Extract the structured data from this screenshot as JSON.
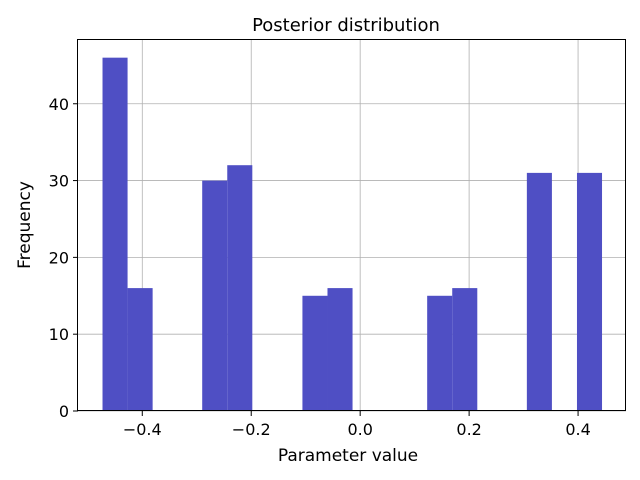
{
  "chart_data": {
    "type": "bar",
    "title": "Posterior distribution",
    "xlabel": "Parameter value",
    "ylabel": "Frequency",
    "xlim": [
      -0.518,
      0.488
    ],
    "ylim": [
      0,
      48.3
    ],
    "xticks": [
      -0.4,
      -0.2,
      0.0,
      0.2,
      0.4
    ],
    "xtick_labels": [
      "−0.4",
      "−0.2",
      "0.0",
      "0.2",
      "0.4"
    ],
    "yticks": [
      0,
      10,
      20,
      30,
      40
    ],
    "ytick_labels": [
      "0",
      "10",
      "20",
      "30",
      "40"
    ],
    "grid": true,
    "bar_color": "#4f4fc4",
    "bins": [
      {
        "x0": -0.473,
        "x1": -0.427,
        "value": 46
      },
      {
        "x0": -0.427,
        "x1": -0.381,
        "value": 16
      },
      {
        "x0": -0.381,
        "x1": -0.335,
        "value": 0
      },
      {
        "x0": -0.335,
        "x1": -0.29,
        "value": 0
      },
      {
        "x0": -0.29,
        "x1": -0.244,
        "value": 30
      },
      {
        "x0": -0.244,
        "x1": -0.198,
        "value": 32
      },
      {
        "x0": -0.198,
        "x1": -0.152,
        "value": 0
      },
      {
        "x0": -0.152,
        "x1": -0.106,
        "value": 0
      },
      {
        "x0": -0.106,
        "x1": -0.06,
        "value": 15
      },
      {
        "x0": -0.06,
        "x1": -0.014,
        "value": 16
      },
      {
        "x0": -0.014,
        "x1": 0.031,
        "value": 0
      },
      {
        "x0": 0.031,
        "x1": 0.077,
        "value": 0
      },
      {
        "x0": 0.077,
        "x1": 0.123,
        "value": 0
      },
      {
        "x0": 0.123,
        "x1": 0.169,
        "value": 15
      },
      {
        "x0": 0.169,
        "x1": 0.215,
        "value": 16
      },
      {
        "x0": 0.215,
        "x1": 0.261,
        "value": 0
      },
      {
        "x0": 0.261,
        "x1": 0.306,
        "value": 0
      },
      {
        "x0": 0.306,
        "x1": 0.352,
        "value": 31
      },
      {
        "x0": 0.352,
        "x1": 0.398,
        "value": 0
      },
      {
        "x0": 0.398,
        "x1": 0.444,
        "value": 31
      }
    ]
  }
}
